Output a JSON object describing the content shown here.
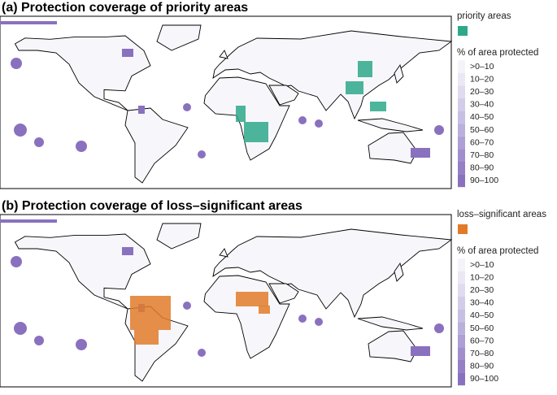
{
  "panels": [
    {
      "title": "(a) Protection coverage of priority areas",
      "layer_label": "priority areas",
      "layer_color": "#2ea88a",
      "legend_title": "% of area protected",
      "classes": [
        ">0–10",
        "10–20",
        "20–30",
        "30–40",
        "40–50",
        "50–60",
        "60–70",
        "70–80",
        "80–90",
        "90–100"
      ]
    },
    {
      "title": "(b) Protection coverage of loss–significant areas",
      "layer_label": "loss–significant areas",
      "layer_color": "#e07b2a",
      "legend_title": "% of area protected",
      "classes": [
        ">0–10",
        "10–20",
        "20–30",
        "30–40",
        "40–50",
        "50–60",
        "60–70",
        "70–80",
        "80–90",
        "90–100"
      ]
    }
  ],
  "class_colors": [
    "#f4f3f9",
    "#ebe8f4",
    "#e0dbef",
    "#d4cde9",
    "#c8bfe3",
    "#bbb0dc",
    "#ae9fd5",
    "#a18fcd",
    "#9580c6",
    "#8a71bf"
  ]
}
